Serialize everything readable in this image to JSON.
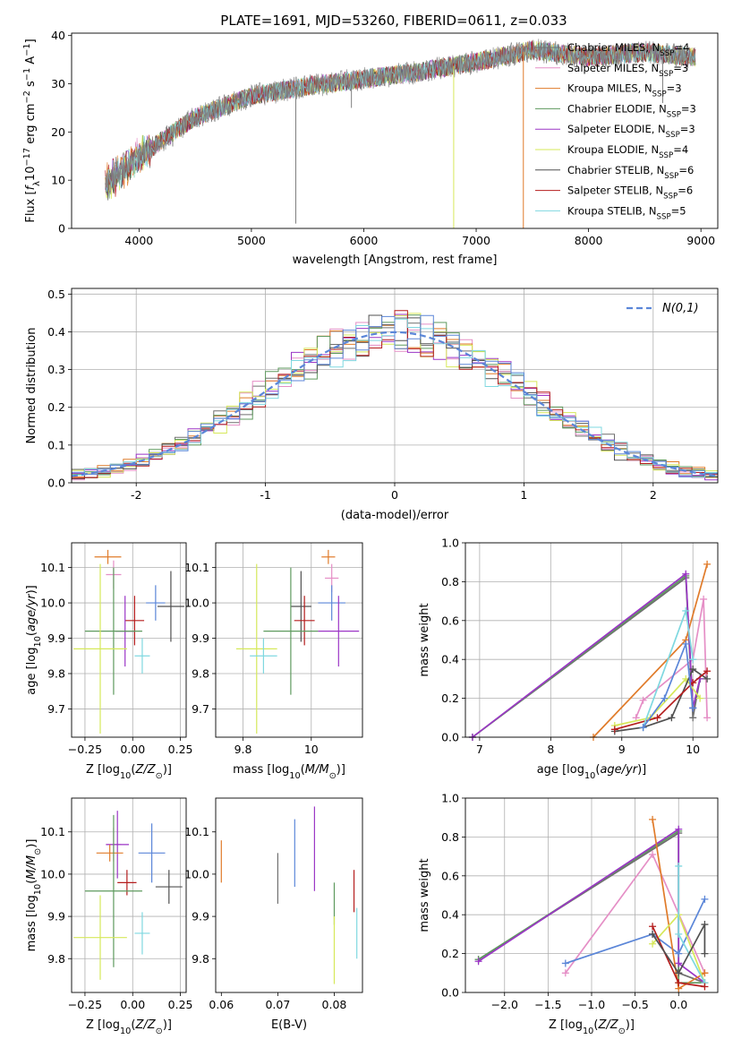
{
  "figure_title": "PLATE=1691, MJD=53260, FIBERID=0611, z=0.033",
  "colors": {
    "Chabrier MILES": "#6f6f6f",
    "Salpeter MILES": "#e58fc6",
    "Kroupa MILES": "#e07b2a",
    "Chabrier ELODIE": "#5e9a5e",
    "Salpeter ELODIE": "#9b35c6",
    "Kroupa ELODIE": "#d6e85a",
    "Chabrier STELIB": "#505050",
    "Salpeter STELIB": "#b51d1d",
    "Kroupa STELIB": "#7fd8e0",
    "blue": "#5b86d8",
    "grid": "#b0b0b0"
  },
  "chart_data": [
    {
      "id": "spectrum",
      "type": "line",
      "title": "PLATE=1691, MJD=53260, FIBERID=0611, z=0.033",
      "xlabel": "wavelength [Angstrom, rest frame]",
      "ylabel": "Flux [f_λ10^-17 erg cm^-2 s^-1 A^-1]",
      "xlim": [
        3400,
        9150
      ],
      "ylim": [
        0,
        40.5
      ],
      "xticks": [
        4000,
        5000,
        6000,
        7000,
        8000,
        9000
      ],
      "yticks": [
        0,
        10,
        20,
        30,
        40
      ],
      "grid": false,
      "legend_position": "right",
      "continuum_wavelength": [
        3700,
        4000,
        4500,
        5000,
        5500,
        6000,
        6500,
        7000,
        7500,
        8000,
        8500,
        8950
      ],
      "continuum_flux": [
        9,
        15,
        23,
        27.5,
        29.5,
        31,
        32.5,
        34.5,
        37,
        35.5,
        36.5,
        35.5
      ],
      "legend": [
        {
          "name": "Chabrier MILES",
          "text": "Chabrier MILES, N",
          "n": "=4"
        },
        {
          "name": "Salpeter MILES",
          "text": "Salpeter MILES, N",
          "n": "=3"
        },
        {
          "name": "Kroupa MILES",
          "text": "Kroupa MILES, N",
          "n": "=3"
        },
        {
          "name": "Chabrier ELODIE",
          "text": "Chabrier ELODIE, N",
          "n": "=3"
        },
        {
          "name": "Salpeter ELODIE",
          "text": "Salpeter ELODIE, N",
          "n": "=3"
        },
        {
          "name": "Kroupa ELODIE",
          "text": "Kroupa ELODIE, N",
          "n": "=4"
        },
        {
          "name": "Chabrier STELIB",
          "text": "Chabrier STELIB, N",
          "n": "=6"
        },
        {
          "name": "Salpeter STELIB",
          "text": "Salpeter STELIB, N",
          "n": "=6"
        },
        {
          "name": "Kroupa STELIB",
          "text": "Kroupa STELIB, N",
          "n": "=5"
        }
      ],
      "legend_sub": "SSP"
    },
    {
      "id": "residuals",
      "type": "histogram",
      "xlabel": "(data-model)/error",
      "ylabel": "Normed distribution",
      "xlim": [
        -2.5,
        2.5
      ],
      "ylim": [
        0,
        0.515
      ],
      "xticks": [
        -2,
        -1,
        0,
        1,
        2
      ],
      "yticks": [
        0.0,
        0.1,
        0.2,
        0.3,
        0.4,
        0.5
      ],
      "grid": true,
      "legend_position": "top-right",
      "gaussian_label": "N(0,1)",
      "bin_width": 0.1
    },
    {
      "id": "age_vs_Z",
      "type": "scatter",
      "xlabel": "Z [log10(Z/Z☉)]",
      "ylabel": "age [log10(age/yr)]",
      "xlim": [
        -0.32,
        0.28
      ],
      "ylim": [
        9.62,
        10.17
      ],
      "xticks": [
        -0.25,
        0.0,
        0.25
      ],
      "xticklabels": [
        "−0.25",
        "0.00",
        "0.25"
      ],
      "yticks": [
        9.7,
        9.8,
        9.9,
        10.0,
        10.1
      ],
      "grid": true,
      "points": [
        {
          "name": "Kroupa MILES",
          "x": -0.13,
          "xerr": 0.07,
          "y": 10.13,
          "yerr": 0.02
        },
        {
          "name": "Salpeter MILES",
          "x": -0.1,
          "xerr": 0.04,
          "y": 10.08,
          "yerr": 0.04
        },
        {
          "name": "Chabrier STELIB",
          "x": 0.2,
          "xerr": 0.07,
          "y": 9.99,
          "yerr": 0.1
        },
        {
          "name": "blue",
          "x": 0.12,
          "xerr": 0.05,
          "y": 10.0,
          "yerr": 0.05
        },
        {
          "name": "Salpeter STELIB",
          "x": 0.01,
          "xerr": 0.05,
          "y": 9.95,
          "yerr": 0.07
        },
        {
          "name": "Salpeter ELODIE",
          "x": -0.04,
          "xerr": 0.05,
          "y": 9.92,
          "yerr": 0.1
        },
        {
          "name": "Chabrier ELODIE",
          "x": -0.1,
          "xerr": 0.15,
          "y": 9.92,
          "yerr": 0.18
        },
        {
          "name": "Kroupa ELODIE",
          "x": -0.17,
          "xerr": 0.14,
          "y": 9.87,
          "yerr": 0.24
        },
        {
          "name": "Kroupa STELIB",
          "x": 0.05,
          "xerr": 0.04,
          "y": 9.85,
          "yerr": 0.05
        }
      ]
    },
    {
      "id": "age_vs_mass",
      "type": "scatter",
      "xlabel": "mass [log10(M/M☉)]",
      "xlim": [
        9.72,
        10.15
      ],
      "ylim": [
        9.62,
        10.17
      ],
      "xticks": [
        9.8,
        10.0
      ],
      "yticks": [
        9.7,
        9.8,
        9.9,
        10.0,
        10.1
      ],
      "grid": true,
      "points": [
        {
          "name": "Kroupa MILES",
          "x": 10.05,
          "xerr": 0.02,
          "y": 10.13,
          "yerr": 0.02
        },
        {
          "name": "Salpeter MILES",
          "x": 10.06,
          "xerr": 0.02,
          "y": 10.07,
          "yerr": 0.04
        },
        {
          "name": "blue",
          "x": 10.06,
          "xerr": 0.04,
          "y": 10.0,
          "yerr": 0.05
        },
        {
          "name": "Chabrier STELIB",
          "x": 9.97,
          "xerr": 0.03,
          "y": 9.99,
          "yerr": 0.1
        },
        {
          "name": "Salpeter STELIB",
          "x": 9.98,
          "xerr": 0.03,
          "y": 9.95,
          "yerr": 0.07
        },
        {
          "name": "Salpeter ELODIE",
          "x": 10.08,
          "xerr": 0.06,
          "y": 9.92,
          "yerr": 0.1
        },
        {
          "name": "Chabrier ELODIE",
          "x": 9.94,
          "xerr": 0.08,
          "y": 9.92,
          "yerr": 0.18
        },
        {
          "name": "Kroupa ELODIE",
          "x": 9.84,
          "xerr": 0.06,
          "y": 9.87,
          "yerr": 0.24
        },
        {
          "name": "Kroupa STELIB",
          "x": 9.86,
          "xerr": 0.04,
          "y": 9.85,
          "yerr": 0.05
        }
      ]
    },
    {
      "id": "weight_vs_age",
      "type": "line",
      "xlabel": "age [log10(age/yr)]",
      "ylabel": "mass weight",
      "xlim": [
        6.8,
        10.35
      ],
      "ylim": [
        0,
        1
      ],
      "xticks": [
        7,
        8,
        9,
        10
      ],
      "yticks": [
        0.0,
        0.2,
        0.4,
        0.6,
        0.8,
        1.0
      ],
      "grid": true,
      "series": [
        {
          "name": "Chabrier MILES",
          "points": [
            [
              6.9,
              0.0
            ],
            [
              9.9,
              0.82
            ],
            [
              10.0,
              0.1
            ],
            [
              10.1,
              0.3
            ]
          ]
        },
        {
          "name": "Salpeter MILES",
          "points": [
            [
              9.2,
              0.1
            ],
            [
              9.3,
              0.19
            ],
            [
              10.0,
              0.4
            ],
            [
              10.15,
              0.71
            ],
            [
              10.2,
              0.1
            ]
          ]
        },
        {
          "name": "Kroupa MILES",
          "points": [
            [
              8.6,
              0.0
            ],
            [
              9.9,
              0.5
            ],
            [
              10.2,
              0.89
            ]
          ]
        },
        {
          "name": "Chabrier ELODIE",
          "points": [
            [
              6.9,
              0.0
            ],
            [
              9.9,
              0.83
            ],
            [
              10.0,
              0.15
            ],
            [
              10.1,
              0.3
            ]
          ]
        },
        {
          "name": "Salpeter ELODIE",
          "points": [
            [
              6.9,
              0.0
            ],
            [
              9.9,
              0.84
            ],
            [
              10.0,
              0.15
            ],
            [
              10.1,
              0.3
            ]
          ]
        },
        {
          "name": "Kroupa ELODIE",
          "points": [
            [
              8.9,
              0.06
            ],
            [
              9.4,
              0.1
            ],
            [
              9.9,
              0.3
            ],
            [
              10.1,
              0.2
            ]
          ]
        },
        {
          "name": "Chabrier STELIB",
          "points": [
            [
              8.9,
              0.03
            ],
            [
              9.3,
              0.05
            ],
            [
              9.7,
              0.1
            ],
            [
              10.0,
              0.35
            ],
            [
              10.2,
              0.3
            ]
          ]
        },
        {
          "name": "Salpeter STELIB",
          "points": [
            [
              8.9,
              0.04
            ],
            [
              9.5,
              0.1
            ],
            [
              10.0,
              0.28
            ],
            [
              10.2,
              0.34
            ]
          ]
        },
        {
          "name": "Kroupa STELIB",
          "points": [
            [
              9.3,
              0.05
            ],
            [
              9.9,
              0.65
            ],
            [
              10.0,
              0.4
            ]
          ]
        },
        {
          "name": "blue",
          "points": [
            [
              9.3,
              0.05
            ],
            [
              9.6,
              0.2
            ],
            [
              9.9,
              0.48
            ],
            [
              10.0,
              0.15
            ]
          ]
        }
      ]
    },
    {
      "id": "mass_vs_Z",
      "type": "scatter",
      "xlabel": "Z [log10(Z/Z☉)]",
      "ylabel": "mass [log10(M/M☉)]",
      "xlim": [
        -0.32,
        0.28
      ],
      "ylim": [
        9.72,
        10.18
      ],
      "xticks": [
        -0.25,
        0.0,
        0.25
      ],
      "xticklabels": [
        "−0.25",
        "0.00",
        "0.25"
      ],
      "yticks": [
        9.8,
        9.9,
        10.0,
        10.1
      ],
      "grid": true,
      "points": [
        {
          "name": "Salpeter MILES",
          "x": -0.1,
          "xerr": 0.04,
          "y": 10.07,
          "yerr": 0.04
        },
        {
          "name": "Salpeter ELODIE",
          "x": -0.08,
          "xerr": 0.06,
          "y": 10.07,
          "yerr": 0.08
        },
        {
          "name": "Kroupa MILES",
          "x": -0.12,
          "xerr": 0.07,
          "y": 10.05,
          "yerr": 0.02
        },
        {
          "name": "blue",
          "x": 0.1,
          "xerr": 0.07,
          "y": 10.05,
          "yerr": 0.07
        },
        {
          "name": "Salpeter STELIB",
          "x": -0.03,
          "xerr": 0.05,
          "y": 9.98,
          "yerr": 0.03
        },
        {
          "name": "Chabrier STELIB",
          "x": 0.19,
          "xerr": 0.07,
          "y": 9.97,
          "yerr": 0.04
        },
        {
          "name": "Chabrier ELODIE",
          "x": -0.1,
          "xerr": 0.15,
          "y": 9.96,
          "yerr": 0.18
        },
        {
          "name": "Kroupa STELIB",
          "x": 0.05,
          "xerr": 0.04,
          "y": 9.86,
          "yerr": 0.05
        },
        {
          "name": "Kroupa ELODIE",
          "x": -0.17,
          "xerr": 0.14,
          "y": 9.85,
          "yerr": 0.1
        }
      ]
    },
    {
      "id": "mass_vs_ebv",
      "type": "scatter",
      "xlabel": "E(B-V)",
      "xlim": [
        0.059,
        0.085
      ],
      "ylim": [
        9.72,
        10.18
      ],
      "xticks": [
        0.06,
        0.07,
        0.08
      ],
      "yticks": [
        9.8,
        9.9,
        10.0,
        10.1
      ],
      "grid": false,
      "points": [
        {
          "name": "Kroupa MILES",
          "x": 0.06,
          "y": 10.03,
          "yerr": 0.05
        },
        {
          "name": "Chabrier MILES",
          "x": 0.07,
          "y": 9.99,
          "yerr": 0.06
        },
        {
          "name": "blue",
          "x": 0.073,
          "y": 10.05,
          "yerr": 0.08
        },
        {
          "name": "Salpeter ELODIE",
          "x": 0.0765,
          "y": 10.06,
          "yerr": 0.1
        },
        {
          "name": "Chabrier ELODIE",
          "x": 0.08,
          "y": 9.93,
          "yerr": 0.05
        },
        {
          "name": "Kroupa ELODIE",
          "x": 0.08,
          "y": 9.82,
          "yerr": 0.08
        },
        {
          "name": "Salpeter STELIB",
          "x": 0.0835,
          "y": 9.96,
          "yerr": 0.05
        },
        {
          "name": "Kroupa STELIB",
          "x": 0.084,
          "y": 9.86,
          "yerr": 0.06
        }
      ]
    },
    {
      "id": "weight_vs_Z",
      "type": "line",
      "xlabel": "Z [log10(Z/Z☉)]",
      "ylabel": "mass weight",
      "xlim": [
        -2.45,
        0.45
      ],
      "ylim": [
        0,
        1
      ],
      "xticks": [
        -2.0,
        -1.5,
        -1.0,
        -0.5,
        0.0
      ],
      "xticklabels": [
        "−2.0",
        "−1.5",
        "−1.0",
        "−0.5",
        "0.0"
      ],
      "yticks": [
        0.0,
        0.2,
        0.4,
        0.6,
        0.8,
        1.0
      ],
      "grid": true,
      "series": [
        {
          "name": "Chabrier MILES",
          "points": [
            [
              -2.3,
              0.17
            ],
            [
              0.0,
              0.82
            ],
            [
              0.0,
              0.1
            ],
            [
              0.3,
              0.05
            ]
          ]
        },
        {
          "name": "Chabrier ELODIE",
          "points": [
            [
              -2.3,
              0.17
            ],
            [
              0.0,
              0.83
            ],
            [
              0.0,
              0.05
            ],
            [
              0.3,
              0.05
            ]
          ]
        },
        {
          "name": "Salpeter ELODIE",
          "points": [
            [
              -2.3,
              0.16
            ],
            [
              0.0,
              0.84
            ],
            [
              0.0,
              0.15
            ],
            [
              0.3,
              0.05
            ]
          ]
        },
        {
          "name": "Salpeter MILES",
          "points": [
            [
              -1.3,
              0.1
            ],
            [
              -0.3,
              0.71
            ],
            [
              0.3,
              0.1
            ]
          ]
        },
        {
          "name": "blue",
          "points": [
            [
              -1.3,
              0.15
            ],
            [
              -0.3,
              0.3
            ],
            [
              0.0,
              0.2
            ],
            [
              0.3,
              0.48
            ]
          ]
        },
        {
          "name": "Kroupa MILES",
          "points": [
            [
              -0.3,
              0.89
            ],
            [
              0.0,
              0.02
            ],
            [
              0.3,
              0.1
            ]
          ]
        },
        {
          "name": "Kroupa ELODIE",
          "points": [
            [
              -0.3,
              0.25
            ],
            [
              0.0,
              0.4
            ],
            [
              0.3,
              0.05
            ]
          ]
        },
        {
          "name": "Kroupa STELIB",
          "points": [
            [
              0.0,
              0.65
            ],
            [
              0.0,
              0.3
            ],
            [
              0.3,
              0.05
            ]
          ]
        },
        {
          "name": "Salpeter STELIB",
          "points": [
            [
              -0.3,
              0.34
            ],
            [
              0.0,
              0.05
            ],
            [
              0.3,
              0.03
            ]
          ]
        },
        {
          "name": "Chabrier STELIB",
          "points": [
            [
              -0.3,
              0.3
            ],
            [
              0.0,
              0.1
            ],
            [
              0.3,
              0.35
            ],
            [
              0.3,
              0.2
            ]
          ]
        }
      ]
    }
  ]
}
